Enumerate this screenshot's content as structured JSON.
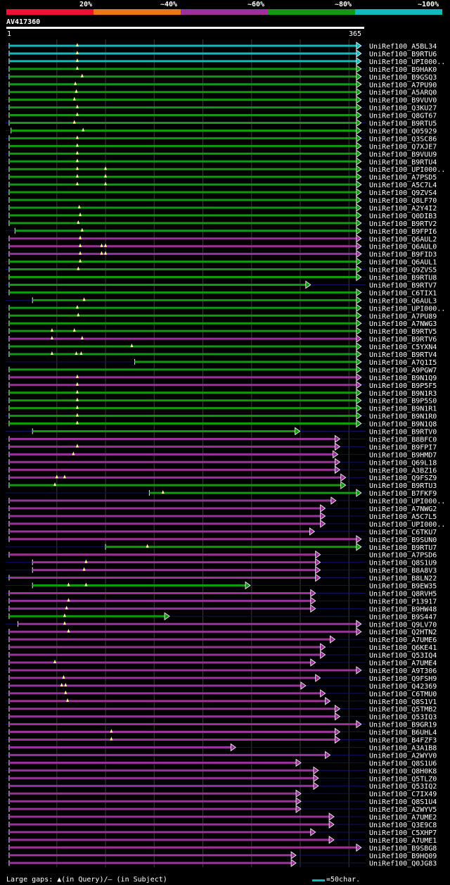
{
  "legend": [
    {
      "label": "20%",
      "color": "#ee1133"
    },
    {
      "label": "~40%",
      "color": "#ee7711"
    },
    {
      "label": "~60%",
      "color": "#993399"
    },
    {
      "label": "~80%",
      "color": "#119911"
    },
    {
      "label": "~100%",
      "color": "#11bbbb"
    }
  ],
  "query": {
    "id": "AV417360",
    "start": "1",
    "end": "365"
  },
  "footer": {
    "gaps_text": "Large gaps: ▲(in Query)/– (in Subject)",
    "scale_text": "=50char."
  },
  "chart_data": {
    "type": "alignment",
    "query_length": 365,
    "hits": [
      {
        "name": "UniRef100_A5BL34",
        "start": 1,
        "end": 362,
        "color": "#11bbbb",
        "gaps": [
          71
        ]
      },
      {
        "name": "UniRef100_B9RTU6",
        "start": 1,
        "end": 362,
        "color": "#11bbbb",
        "gaps": [
          71
        ]
      },
      {
        "name": "UniRef100_UPI000..",
        "start": 1,
        "end": 362,
        "color": "#11bbbb",
        "gaps": [
          71
        ]
      },
      {
        "name": "UniRef100_B9HAK0",
        "start": 1,
        "end": 362,
        "color": "#119911",
        "gaps": [
          71
        ]
      },
      {
        "name": "UniRef100_B9GSQ3",
        "start": 1,
        "end": 362,
        "color": "#119911",
        "gaps": [
          76
        ]
      },
      {
        "name": "UniRef100_A7PU90",
        "start": 1,
        "end": 362,
        "color": "#119911",
        "gaps": [
          69
        ]
      },
      {
        "name": "UniRef100_A5ARQ0",
        "start": 1,
        "end": 362,
        "color": "#119911",
        "gaps": [
          70
        ]
      },
      {
        "name": "UniRef100_B9VUV0",
        "start": 1,
        "end": 362,
        "color": "#119911",
        "gaps": [
          68
        ]
      },
      {
        "name": "UniRef100_Q3KU27",
        "start": 1,
        "end": 362,
        "color": "#119911",
        "gaps": [
          71
        ]
      },
      {
        "name": "UniRef100_Q8GT67",
        "start": 1,
        "end": 362,
        "color": "#119911",
        "gaps": [
          71
        ]
      },
      {
        "name": "UniRef100_B9RTU5",
        "start": 1,
        "end": 362,
        "color": "#119911",
        "gaps": [
          68
        ]
      },
      {
        "name": "UniRef100_Q05929",
        "start": 3,
        "end": 362,
        "color": "#119911",
        "gaps": [
          77
        ]
      },
      {
        "name": "UniRef100_Q3SC86",
        "start": 1,
        "end": 362,
        "color": "#119911",
        "gaps": [
          71
        ]
      },
      {
        "name": "UniRef100_Q7XJE7",
        "start": 1,
        "end": 362,
        "color": "#119911",
        "gaps": [
          71
        ]
      },
      {
        "name": "UniRef100_B9VUU9",
        "start": 1,
        "end": 362,
        "color": "#119911",
        "gaps": [
          71
        ]
      },
      {
        "name": "UniRef100_B9RTU4",
        "start": 1,
        "end": 362,
        "color": "#119911",
        "gaps": [
          71
        ]
      },
      {
        "name": "UniRef100_UPI000..",
        "start": 1,
        "end": 362,
        "color": "#119911",
        "gaps": [
          71,
          100
        ]
      },
      {
        "name": "UniRef100_A7PSD5",
        "start": 1,
        "end": 362,
        "color": "#119911",
        "gaps": [
          71,
          100
        ]
      },
      {
        "name": "UniRef100_A5C7L4",
        "start": 1,
        "end": 362,
        "color": "#119911",
        "gaps": [
          71,
          100
        ]
      },
      {
        "name": "UniRef100_Q9ZVS4",
        "start": 1,
        "end": 362,
        "color": "#119911",
        "gaps": []
      },
      {
        "name": "UniRef100_Q8LF70",
        "start": 1,
        "end": 362,
        "color": "#119911",
        "gaps": []
      },
      {
        "name": "UniRef100_A2Y4I2",
        "start": 1,
        "end": 362,
        "color": "#119911",
        "gaps": [
          73
        ]
      },
      {
        "name": "UniRef100_Q0DIB3",
        "start": 1,
        "end": 362,
        "color": "#119911",
        "gaps": [
          74
        ]
      },
      {
        "name": "UniRef100_B9RTV2",
        "start": 1,
        "end": 362,
        "color": "#119911",
        "gaps": [
          72
        ]
      },
      {
        "name": "UniRef100_B9FPI6",
        "start": 7,
        "end": 362,
        "color": "#119911",
        "gaps": [
          76
        ]
      },
      {
        "name": "UniRef100_Q6AUL2",
        "start": 1,
        "end": 362,
        "color": "#993399",
        "gaps": [
          74
        ]
      },
      {
        "name": "UniRef100_Q6AUL0",
        "start": 1,
        "end": 362,
        "color": "#993399",
        "gaps": [
          74,
          96,
          100
        ]
      },
      {
        "name": "UniRef100_B9FID3",
        "start": 1,
        "end": 362,
        "color": "#993399",
        "gaps": [
          74,
          96,
          100
        ]
      },
      {
        "name": "UniRef100_Q6AUL1",
        "start": 1,
        "end": 362,
        "color": "#119911",
        "gaps": [
          74
        ]
      },
      {
        "name": "UniRef100_Q9ZVS5",
        "start": 1,
        "end": 362,
        "color": "#119911",
        "gaps": [
          72
        ]
      },
      {
        "name": "UniRef100_B9RTU8",
        "start": 1,
        "end": 362,
        "color": "#119911",
        "gaps": []
      },
      {
        "name": "UniRef100_B9RTV7",
        "start": 1,
        "end": 310,
        "color": "#119911",
        "gaps": []
      },
      {
        "name": "UniRef100_C6TIX1",
        "start": 1,
        "end": 362,
        "color": "#119911",
        "gaps": []
      },
      {
        "name": "UniRef100_Q6AUL3",
        "start": 25,
        "end": 362,
        "color": "#119911",
        "gaps": [
          78
        ]
      },
      {
        "name": "UniRef100_UPI000..",
        "start": 1,
        "end": 362,
        "color": "#119911",
        "gaps": [
          71
        ]
      },
      {
        "name": "UniRef100_A7PU89",
        "start": 1,
        "end": 362,
        "color": "#119911",
        "gaps": [
          72
        ]
      },
      {
        "name": "UniRef100_A7NWG3",
        "start": 1,
        "end": 362,
        "color": "#119911",
        "gaps": []
      },
      {
        "name": "UniRef100_B9RTV5",
        "start": 1,
        "end": 362,
        "color": "#119911",
        "gaps": [
          45,
          68
        ]
      },
      {
        "name": "UniRef100_B9RTV6",
        "start": 1,
        "end": 362,
        "color": "#993399",
        "gaps": [
          45,
          76
        ]
      },
      {
        "name": "UniRef100_C5YXN4",
        "start": 1,
        "end": 362,
        "color": "#119911",
        "gaps": [
          127
        ]
      },
      {
        "name": "UniRef100_B9RTV4",
        "start": 1,
        "end": 362,
        "color": "#119911",
        "gaps": [
          45,
          70,
          75
        ]
      },
      {
        "name": "UniRef100_A7Q1I5",
        "start": 130,
        "end": 362,
        "color": "#119911",
        "gaps": []
      },
      {
        "name": "UniRef100_A9PGW7",
        "start": 1,
        "end": 362,
        "color": "#119911",
        "gaps": []
      },
      {
        "name": "UniRef100_B9N1Q9",
        "start": 1,
        "end": 362,
        "color": "#993399",
        "gaps": [
          71
        ]
      },
      {
        "name": "UniRef100_B9P5F5",
        "start": 1,
        "end": 362,
        "color": "#993399",
        "gaps": [
          71
        ]
      },
      {
        "name": "UniRef100_B9N1R3",
        "start": 1,
        "end": 362,
        "color": "#119911",
        "gaps": [
          71
        ]
      },
      {
        "name": "UniRef100_B9P5S0",
        "start": 1,
        "end": 362,
        "color": "#119911",
        "gaps": [
          71
        ]
      },
      {
        "name": "UniRef100_B9N1R1",
        "start": 1,
        "end": 362,
        "color": "#119911",
        "gaps": [
          71
        ]
      },
      {
        "name": "UniRef100_B9N1R0",
        "start": 1,
        "end": 362,
        "color": "#119911",
        "gaps": [
          71
        ]
      },
      {
        "name": "UniRef100_B9N1Q8",
        "start": 1,
        "end": 362,
        "color": "#119911",
        "gaps": [
          71
        ]
      },
      {
        "name": "UniRef100_B9RTV0",
        "start": 25,
        "end": 299,
        "color": "#119911",
        "gaps": []
      },
      {
        "name": "UniRef100_B8BFC0",
        "start": 1,
        "end": 340,
        "color": "#993399",
        "gaps": []
      },
      {
        "name": "UniRef100_B9FPI7",
        "start": 1,
        "end": 340,
        "color": "#993399",
        "gaps": [
          71
        ]
      },
      {
        "name": "UniRef100_B9HMD7",
        "start": 1,
        "end": 338,
        "color": "#993399",
        "gaps": [
          67
        ]
      },
      {
        "name": "UniRef100_Q69L18",
        "start": 1,
        "end": 340,
        "color": "#993399",
        "gaps": []
      },
      {
        "name": "UniRef100_A3BZ16",
        "start": 1,
        "end": 340,
        "color": "#993399",
        "gaps": []
      },
      {
        "name": "UniRef100_Q9FSZ9",
        "start": 1,
        "end": 346,
        "color": "#993399",
        "gaps": [
          50,
          58
        ]
      },
      {
        "name": "UniRef100_B9RTU3",
        "start": 1,
        "end": 346,
        "color": "#119911",
        "gaps": [
          48
        ]
      },
      {
        "name": "UniRef100_B7FKF9",
        "start": 145,
        "end": 362,
        "color": "#119911",
        "gaps": [
          159
        ]
      },
      {
        "name": "UniRef100_UPI000..",
        "start": 1,
        "end": 336,
        "color": "#993399",
        "gaps": []
      },
      {
        "name": "UniRef100_A7NWG2",
        "start": 1,
        "end": 325,
        "color": "#993399",
        "gaps": []
      },
      {
        "name": "UniRef100_A5C7L5",
        "start": 1,
        "end": 325,
        "color": "#993399",
        "gaps": []
      },
      {
        "name": "UniRef100_UPI000..",
        "start": 1,
        "end": 325,
        "color": "#993399",
        "gaps": []
      },
      {
        "name": "UniRef100_C6TKU7",
        "start": 1,
        "end": 314,
        "color": "#993399",
        "gaps": []
      },
      {
        "name": "UniRef100_B9SUN0",
        "start": 1,
        "end": 362,
        "color": "#993399",
        "gaps": []
      },
      {
        "name": "UniRef100_B9RTU7",
        "start": 100,
        "end": 362,
        "color": "#119911",
        "gaps": [
          143
        ]
      },
      {
        "name": "UniRef100_A7PSD6",
        "start": 1,
        "end": 320,
        "color": "#993399",
        "gaps": []
      },
      {
        "name": "UniRef100_Q8S1U9",
        "start": 25,
        "end": 320,
        "color": "#993399",
        "gaps": [
          80
        ]
      },
      {
        "name": "UniRef100_B8A8V3",
        "start": 25,
        "end": 320,
        "color": "#993399",
        "gaps": [
          78
        ]
      },
      {
        "name": "UniRef100_B8LN22",
        "start": 1,
        "end": 320,
        "color": "#993399",
        "gaps": []
      },
      {
        "name": "UniRef100_B9EW35",
        "start": 25,
        "end": 248,
        "color": "#119911",
        "gaps": [
          62,
          80
        ]
      },
      {
        "name": "UniRef100_Q8RVH5",
        "start": 1,
        "end": 315,
        "color": "#993399",
        "gaps": []
      },
      {
        "name": "UniRef100_P13917",
        "start": 1,
        "end": 315,
        "color": "#993399",
        "gaps": [
          62
        ]
      },
      {
        "name": "UniRef100_B9HW48",
        "start": 1,
        "end": 315,
        "color": "#993399",
        "gaps": [
          60
        ]
      },
      {
        "name": "UniRef100_B9S447",
        "start": 1,
        "end": 165,
        "color": "#119911",
        "gaps": [
          58
        ]
      },
      {
        "name": "UniRef100_Q9LV70",
        "start": 10,
        "end": 362,
        "color": "#993399",
        "gaps": [
          58
        ]
      },
      {
        "name": "UniRef100_Q2HTN2",
        "start": 1,
        "end": 362,
        "color": "#993399",
        "gaps": [
          62
        ]
      },
      {
        "name": "UniRef100_A7UME6",
        "start": 1,
        "end": 335,
        "color": "#993399",
        "gaps": []
      },
      {
        "name": "UniRef100_Q6KE41",
        "start": 1,
        "end": 325,
        "color": "#993399",
        "gaps": []
      },
      {
        "name": "UniRef100_Q53IQ4",
        "start": 1,
        "end": 325,
        "color": "#993399",
        "gaps": []
      },
      {
        "name": "UniRef100_A7UME4",
        "start": 1,
        "end": 315,
        "color": "#993399",
        "gaps": [
          48
        ]
      },
      {
        "name": "UniRef100_A9T306",
        "start": 1,
        "end": 362,
        "color": "#993399",
        "gaps": []
      },
      {
        "name": "UniRef100_Q9FSH9",
        "start": 1,
        "end": 320,
        "color": "#993399",
        "gaps": [
          57
        ]
      },
      {
        "name": "UniRef100_Q42369",
        "start": 1,
        "end": 305,
        "color": "#993399",
        "gaps": [
          55,
          59
        ]
      },
      {
        "name": "UniRef100_C6TMU0",
        "start": 1,
        "end": 325,
        "color": "#993399",
        "gaps": [
          59
        ]
      },
      {
        "name": "UniRef100_Q8S1V1",
        "start": 1,
        "end": 330,
        "color": "#993399",
        "gaps": [
          61
        ]
      },
      {
        "name": "UniRef100_Q5TMB2",
        "start": 1,
        "end": 340,
        "color": "#993399",
        "gaps": []
      },
      {
        "name": "UniRef100_Q53IQ3",
        "start": 1,
        "end": 340,
        "color": "#993399",
        "gaps": []
      },
      {
        "name": "UniRef100_B9GR19",
        "start": 1,
        "end": 362,
        "color": "#993399",
        "gaps": []
      },
      {
        "name": "UniRef100_B6UHL4",
        "start": 1,
        "end": 340,
        "color": "#993399",
        "gaps": [
          106
        ]
      },
      {
        "name": "UniRef100_B4FZF3",
        "start": 1,
        "end": 340,
        "color": "#993399",
        "gaps": [
          106
        ]
      },
      {
        "name": "UniRef100_A3A1B8",
        "start": 1,
        "end": 233,
        "color": "#993399",
        "gaps": []
      },
      {
        "name": "UniRef100_A2WYV0",
        "start": 1,
        "end": 330,
        "color": "#993399",
        "gaps": []
      },
      {
        "name": "UniRef100_Q8S1U6",
        "start": 1,
        "end": 300,
        "color": "#993399",
        "gaps": []
      },
      {
        "name": "UniRef100_Q8H0K8",
        "start": 1,
        "end": 318,
        "color": "#993399",
        "gaps": []
      },
      {
        "name": "UniRef100_Q5TLZ0",
        "start": 1,
        "end": 318,
        "color": "#993399",
        "gaps": []
      },
      {
        "name": "UniRef100_Q53IQ2",
        "start": 1,
        "end": 318,
        "color": "#993399",
        "gaps": []
      },
      {
        "name": "UniRef100_C7IX49",
        "start": 1,
        "end": 300,
        "color": "#993399",
        "gaps": []
      },
      {
        "name": "UniRef100_Q8S1U4",
        "start": 1,
        "end": 300,
        "color": "#993399",
        "gaps": []
      },
      {
        "name": "UniRef100_A2WYV5",
        "start": 1,
        "end": 300,
        "color": "#993399",
        "gaps": []
      },
      {
        "name": "UniRef100_A7UME2",
        "start": 1,
        "end": 334,
        "color": "#993399",
        "gaps": []
      },
      {
        "name": "UniRef100_Q3E9C8",
        "start": 1,
        "end": 334,
        "color": "#993399",
        "gaps": []
      },
      {
        "name": "UniRef100_C5XHP7",
        "start": 1,
        "end": 315,
        "color": "#993399",
        "gaps": []
      },
      {
        "name": "UniRef100_A7UME1",
        "start": 1,
        "end": 334,
        "color": "#993399",
        "gaps": []
      },
      {
        "name": "UniRef100_B9SBG8",
        "start": 1,
        "end": 362,
        "color": "#993399",
        "gaps": []
      },
      {
        "name": "UniRef100_B9HQ09",
        "start": 1,
        "end": 295,
        "color": "#993399",
        "gaps": []
      },
      {
        "name": "UniRef100_Q0JG83",
        "start": 1,
        "end": 295,
        "color": "#993399",
        "gaps": []
      }
    ]
  }
}
